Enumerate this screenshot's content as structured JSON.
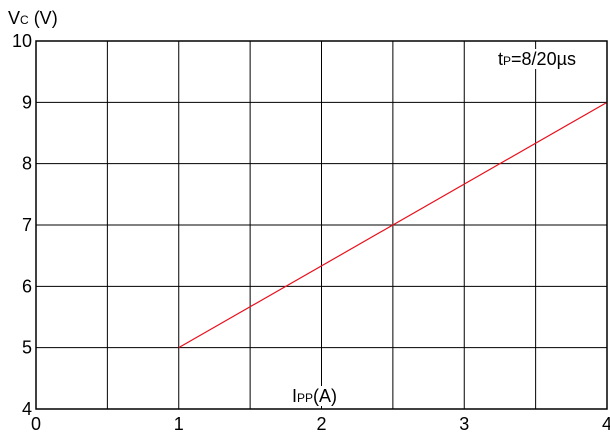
{
  "chart_data": {
    "type": "line",
    "y_label_main": "V",
    "y_label_sub": "C",
    "y_label_unit": " (V)",
    "x_label_main": "I",
    "x_label_sub": "PP",
    "x_label_unit": "(A)",
    "annotation_main": "t",
    "annotation_sub": "P",
    "annotation_rest": "=8/20µs",
    "xlim": [
      0,
      4
    ],
    "ylim": [
      4,
      10
    ],
    "x_ticks": [
      "0",
      "1",
      "2",
      "3",
      "4"
    ],
    "y_ticks": [
      "4",
      "5",
      "6",
      "7",
      "8",
      "9",
      "10"
    ],
    "x_grid_step": 0.5,
    "y_grid_step": 1,
    "grid": true,
    "series": [
      {
        "x": [
          1,
          4
        ],
        "y": [
          5,
          9
        ],
        "color": "#e8101c"
      }
    ]
  }
}
